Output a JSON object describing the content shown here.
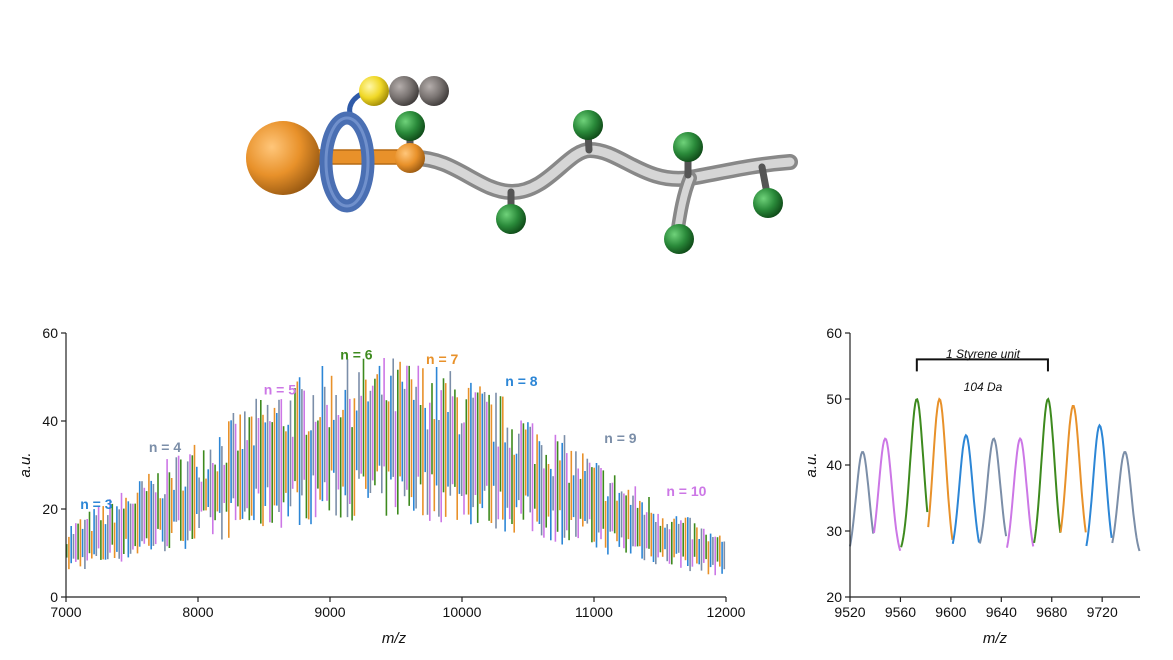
{
  "illustration": {
    "description_icon": "rotaxane-polymer-illustration",
    "colors": {
      "stopper": "#e8912a",
      "ring": "#4a6fb3",
      "yellow_bead": "#f0d827",
      "grey_beads": "#7a7472",
      "chain": "#b8b8b8",
      "side_group": "#2a8a3a"
    }
  },
  "chart_data": [
    {
      "type": "line",
      "xlabel": "m/z",
      "ylabel": "a.u.",
      "xlim": [
        7000,
        12000
      ],
      "ylim": [
        0,
        60
      ],
      "xticks": [
        7000,
        8000,
        9000,
        10000,
        11000,
        12000
      ],
      "yticks": [
        0,
        20,
        40,
        60
      ],
      "grid": false,
      "envelope": {
        "center": 9400,
        "peak": 50,
        "sigma": 1500,
        "floor": 2
      },
      "series": [
        {
          "name": "n = 3",
          "color": "#2c86d6",
          "label_at": [
            7230,
            20
          ]
        },
        {
          "name": "n = 4",
          "color": "#7b8ea8",
          "label_at": [
            7750,
            33
          ]
        },
        {
          "name": "n = 5",
          "color": "#cc77e6",
          "label_at": [
            8620,
            46
          ]
        },
        {
          "name": "n = 6",
          "color": "#3d8a1e",
          "label_at": [
            9200,
            54
          ]
        },
        {
          "name": "n = 7",
          "color": "#e8912a",
          "label_at": [
            9850,
            53
          ]
        },
        {
          "name": "n = 8",
          "color": "#2c86d6",
          "label_at": [
            10450,
            48
          ]
        },
        {
          "name": "n = 9",
          "color": "#7b8ea8",
          "label_at": [
            11200,
            35
          ]
        },
        {
          "name": "n = 10",
          "color": "#cc77e6",
          "label_at": [
            11700,
            23
          ]
        }
      ]
    },
    {
      "type": "line",
      "xlabel": "m/z",
      "ylabel": "a.u.",
      "xlim": [
        9520,
        9750
      ],
      "ylim": [
        20,
        60
      ],
      "xticks": [
        9520,
        9560,
        9600,
        9640,
        9680,
        9720
      ],
      "yticks": [
        20,
        30,
        40,
        50,
        60
      ],
      "grid": false,
      "annotation": {
        "line1": "1 Styrene unit",
        "line2": "104 Da",
        "x_start": 9573,
        "x_end": 9677,
        "y": 56
      },
      "peaks": [
        {
          "x": 9530,
          "y": 42,
          "color": "#7b8ea8"
        },
        {
          "x": 9548,
          "y": 44,
          "color": "#cc77e6"
        },
        {
          "x": 9573,
          "y": 50,
          "color": "#3d8a1e"
        },
        {
          "x": 9591,
          "y": 50,
          "color": "#e8912a"
        },
        {
          "x": 9612,
          "y": 44.5,
          "color": "#2c86d6"
        },
        {
          "x": 9634,
          "y": 44,
          "color": "#7b8ea8"
        },
        {
          "x": 9655,
          "y": 44,
          "color": "#cc77e6"
        },
        {
          "x": 9677,
          "y": 50,
          "color": "#3d8a1e"
        },
        {
          "x": 9697,
          "y": 49,
          "color": "#e8912a"
        },
        {
          "x": 9718,
          "y": 46,
          "color": "#2c86d6"
        },
        {
          "x": 9738,
          "y": 42,
          "color": "#7b8ea8"
        }
      ]
    }
  ]
}
